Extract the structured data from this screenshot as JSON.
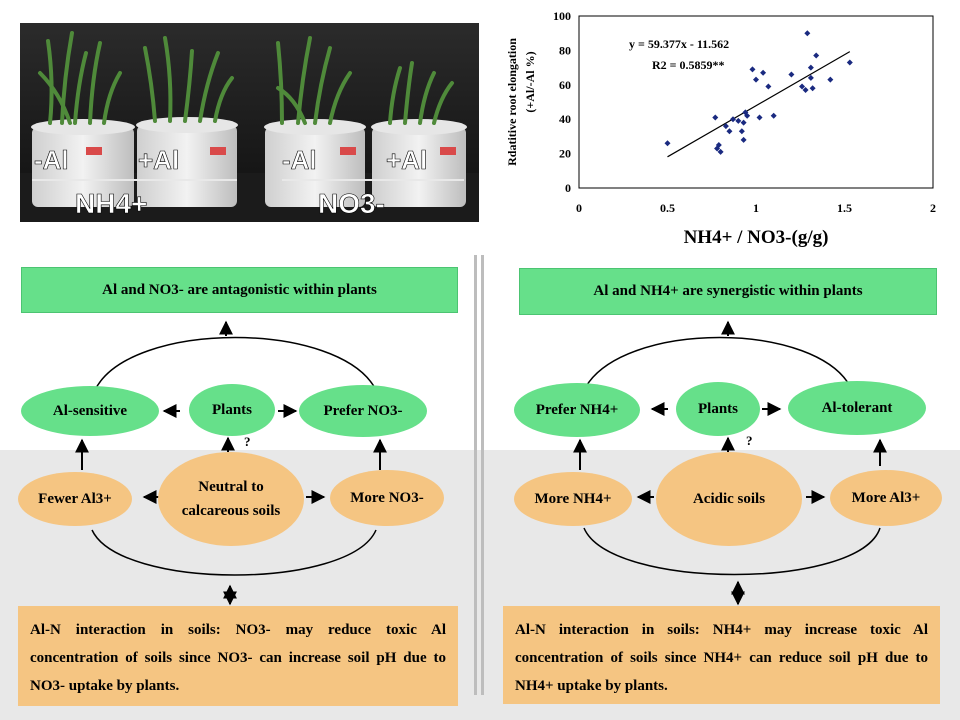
{
  "photo": {
    "labels": {
      "nh4_minus_al": "-Al",
      "nh4_plus_al": "+Al",
      "nh4_group": "NH4+",
      "no3_minus_al": "-Al",
      "no3_plus_al": "+Al",
      "no3_group": "NO3-"
    }
  },
  "chart_data": {
    "type": "scatter",
    "xlabel": "NH4+ / NO3-(g/g)",
    "ylabel_line1": "Rdatitive root elongation",
    "ylabel_line2": "(+Al/-Al %)",
    "xlim": [
      0,
      2
    ],
    "ylim": [
      0,
      100
    ],
    "xticks": [
      "0",
      "0.5",
      "1",
      "1.5",
      "2"
    ],
    "yticks": [
      "0",
      "20",
      "40",
      "60",
      "80",
      "100"
    ],
    "equation": "y = 59.377x - 11.562",
    "r2": "R2 = 0.5859**",
    "trendline": {
      "slope": 59.377,
      "intercept": -11.562,
      "x_range": [
        0.5,
        1.53
      ]
    },
    "points": [
      [
        0.5,
        26
      ],
      [
        0.77,
        41
      ],
      [
        0.78,
        23
      ],
      [
        0.79,
        25
      ],
      [
        0.8,
        21
      ],
      [
        0.83,
        36
      ],
      [
        0.85,
        33
      ],
      [
        0.87,
        40
      ],
      [
        0.9,
        39
      ],
      [
        0.92,
        33
      ],
      [
        0.93,
        28
      ],
      [
        0.93,
        38
      ],
      [
        0.94,
        44
      ],
      [
        0.95,
        42
      ],
      [
        0.98,
        69
      ],
      [
        1.0,
        63
      ],
      [
        1.02,
        41
      ],
      [
        1.04,
        67
      ],
      [
        1.07,
        59
      ],
      [
        1.1,
        42
      ],
      [
        1.2,
        66
      ],
      [
        1.26,
        59
      ],
      [
        1.28,
        57
      ],
      [
        1.29,
        90
      ],
      [
        1.31,
        64
      ],
      [
        1.31,
        70
      ],
      [
        1.32,
        58
      ],
      [
        1.34,
        77
      ],
      [
        1.42,
        63
      ],
      [
        1.53,
        73
      ]
    ]
  },
  "left": {
    "top_box": "Al and NO3- are antagonistic within plants",
    "al_sensitive": "Al-sensitive",
    "plants": "Plants",
    "prefer_no3": "Prefer NO3-",
    "question": "?",
    "fewer_al": "Fewer Al3+",
    "soil_line1": "Neutral to",
    "soil_line2": "calcareous soils",
    "more_no3": "More NO3-",
    "bottom_box": "Al-N interaction in soils: NO3- may reduce toxic Al concentration of soils since NO3- can increase soil pH due to NO3- uptake by plants."
  },
  "right": {
    "top_box": "Al and NH4+ are synergistic within plants",
    "prefer_nh4": "Prefer NH4+",
    "plants": "Plants",
    "al_tolerant": "Al-tolerant",
    "question": "?",
    "more_nh4": "More NH4+",
    "soil": "Acidic soils",
    "more_al": "More Al3+",
    "bottom_box": "Al-N interaction in soils: NH4+ may increase toxic Al concentration of soils since NH4+ can reduce soil pH due to NH4+ uptake by plants."
  },
  "colors": {
    "green": "#66e08a",
    "orange": "#f5c582",
    "gray_band": "#e8e8e8",
    "point": "#1a2a80"
  }
}
